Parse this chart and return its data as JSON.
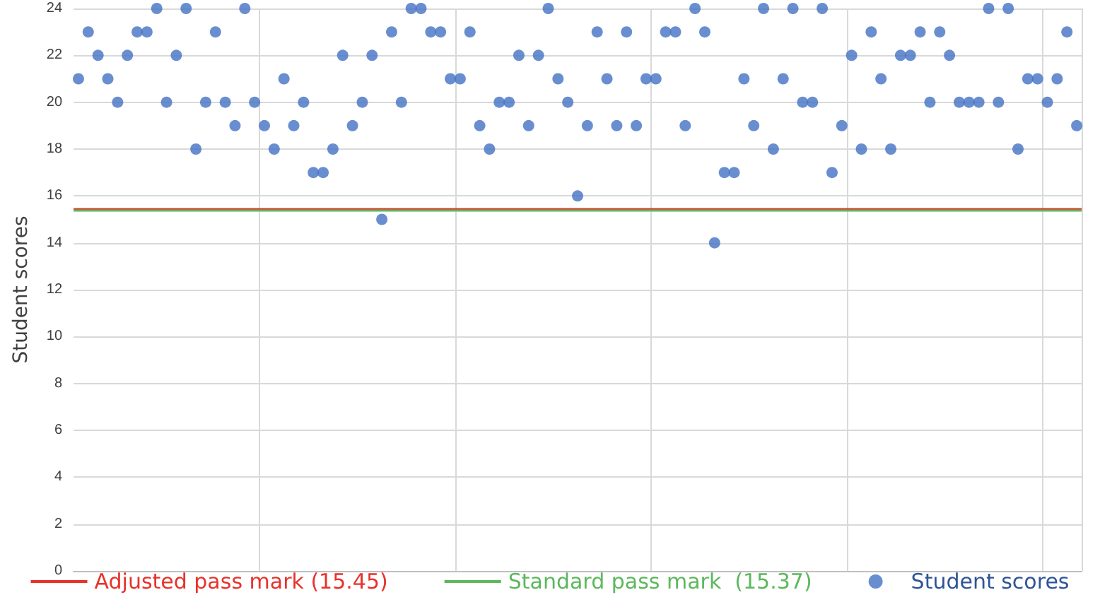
{
  "chart_data": {
    "type": "scatter",
    "ylabel": "Student scores",
    "categories": [
      null,
      null,
      null,
      null,
      null,
      null,
      null,
      null,
      null,
      null,
      null,
      null,
      null,
      null,
      null,
      null,
      null,
      null,
      null,
      null,
      null,
      null,
      null,
      null,
      null,
      null,
      null,
      null,
      null,
      null,
      null,
      null,
      null,
      null,
      null,
      null,
      null,
      null,
      null,
      null,
      null,
      null,
      null,
      null,
      null,
      null,
      null,
      null,
      null,
      null,
      null,
      null,
      null,
      null,
      null,
      null,
      null,
      null,
      null,
      null,
      null,
      null,
      null,
      null,
      null,
      null,
      null,
      null,
      null,
      null,
      null,
      null,
      null,
      null,
      null,
      null,
      null,
      null,
      null,
      null,
      null,
      null,
      null,
      null,
      null,
      null,
      null,
      null,
      null,
      null,
      null,
      null,
      null,
      null,
      null,
      null,
      null,
      null,
      null,
      null,
      null,
      null,
      null
    ],
    "series": [
      {
        "name": "Student scores",
        "color": "#4472c4",
        "values": [
          21,
          23,
          22,
          21,
          20,
          22,
          23,
          23,
          24,
          20,
          22,
          24,
          18,
          20,
          23,
          20,
          19,
          24,
          20,
          19,
          18,
          21,
          19,
          20,
          17,
          17,
          18,
          22,
          19,
          20,
          22,
          15,
          23,
          20,
          24,
          24,
          23,
          23,
          21,
          21,
          23,
          19,
          18,
          20,
          20,
          22,
          19,
          22,
          24,
          21,
          20,
          16,
          19,
          23,
          21,
          19,
          23,
          19,
          21,
          21,
          23,
          23,
          19,
          24,
          23,
          14,
          17,
          17,
          21,
          19,
          24,
          18,
          21,
          24,
          20,
          20,
          24,
          17,
          19,
          22,
          18,
          23,
          21,
          18,
          22,
          22,
          23,
          20,
          23,
          22,
          20,
          20,
          20,
          24,
          20,
          24,
          18,
          21,
          21,
          20,
          21,
          23,
          19
        ]
      }
    ],
    "ref_lines": [
      {
        "axis": "y",
        "value": 15.45,
        "label": "Adjusted pass mark (15.45)",
        "color": "#e8322b"
      },
      {
        "axis": "y",
        "value": 15.37,
        "label": "Standard pass mark  (15.37)",
        "color": "#5cb85c"
      }
    ],
    "ylim": [
      0,
      24
    ],
    "yticks": [
      0,
      2,
      4,
      6,
      8,
      10,
      12,
      14,
      16,
      18,
      20,
      22,
      24
    ],
    "grid": true,
    "legend": "bottom",
    "marker": "circle"
  }
}
